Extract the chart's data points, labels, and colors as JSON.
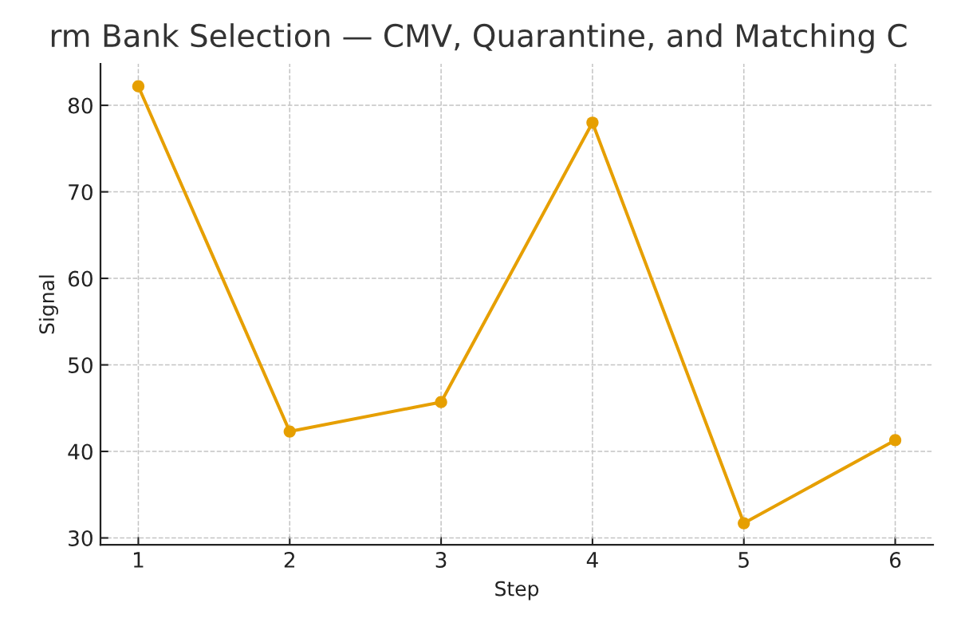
{
  "chart_data": {
    "type": "line",
    "title": "rm Bank Selection — CMV, Quarantine, and Matching C",
    "xlabel": "Step",
    "ylabel": "Signal",
    "x": [
      1,
      2,
      3,
      4,
      5,
      6
    ],
    "series": [
      {
        "color": "#e69f00",
        "values": [
          82.2,
          42.3,
          45.7,
          78.0,
          31.7,
          41.3
        ]
      }
    ],
    "xlim": [
      0.75,
      6.25
    ],
    "ylim": [
      29.2,
      84.8
    ],
    "xticks": [
      1,
      2,
      3,
      4,
      5,
      6
    ],
    "yticks": [
      30,
      40,
      50,
      60,
      70,
      80
    ],
    "grid": true,
    "marker": "circle",
    "line_style": "solid"
  }
}
